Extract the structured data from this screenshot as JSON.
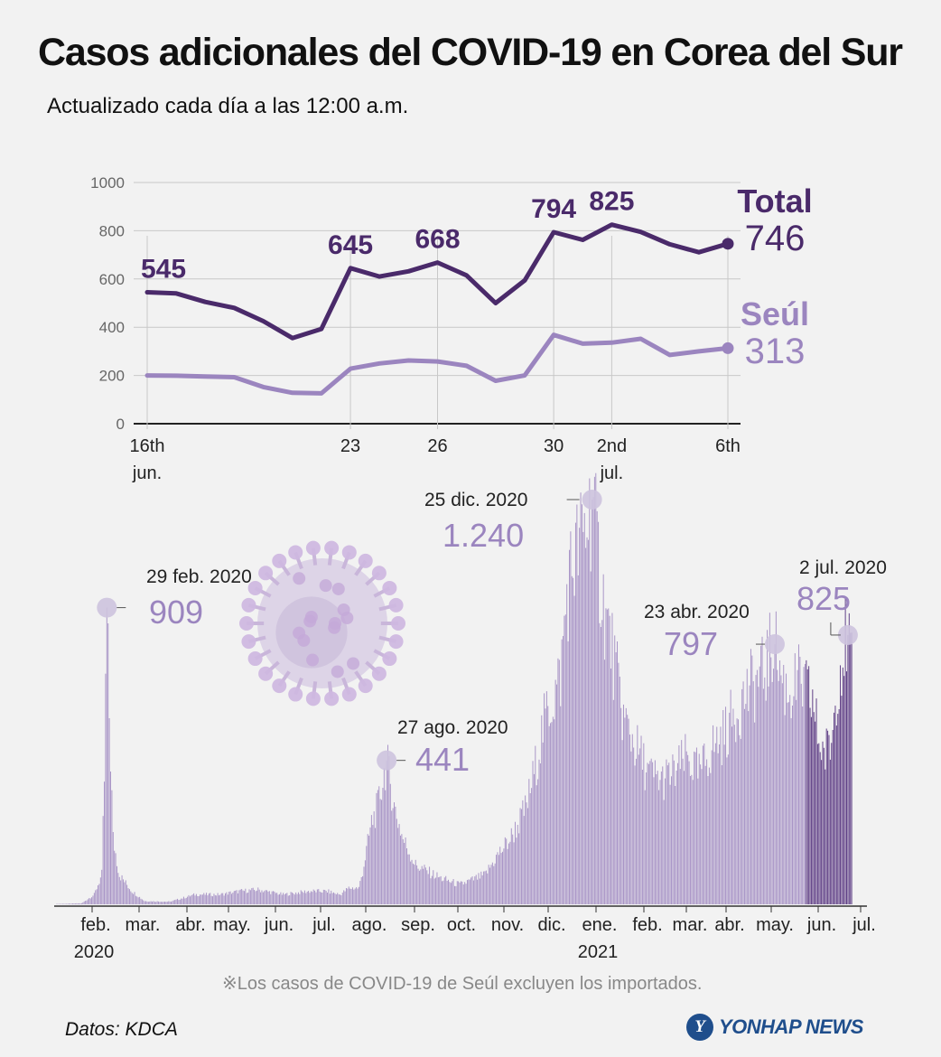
{
  "header": {
    "title": "Casos adicionales del COVID-19 en Corea del Sur",
    "subtitle": "Actualizado cada día a las 12:00 a.m."
  },
  "colors": {
    "total": "#4a2a6a",
    "seoul": "#9b85bf",
    "bars": "#a894c6",
    "bars_recent": "#5e3d85",
    "grid": "#c8c8c8",
    "halo": "#cdc3de"
  },
  "chart_data": [
    {
      "type": "line",
      "title": "",
      "ylim": [
        0,
        1000
      ],
      "yticks": [
        "0",
        "200",
        "400",
        "600",
        "800",
        "1000"
      ],
      "x_labels": [
        {
          "index": 0,
          "line1": "16th",
          "line2": "jun."
        },
        {
          "index": 7,
          "line1": "23",
          "line2": ""
        },
        {
          "index": 10,
          "line1": "26",
          "line2": ""
        },
        {
          "index": 14,
          "line1": "30",
          "line2": ""
        },
        {
          "index": 16,
          "line1": "2nd",
          "line2": "jul."
        },
        {
          "index": 20,
          "line1": "6th",
          "line2": ""
        }
      ],
      "series": [
        {
          "name": "Total",
          "final_label": "746",
          "values": [
            545,
            540,
            505,
            480,
            425,
            355,
            393,
            645,
            610,
            632,
            668,
            615,
            500,
            594,
            794,
            762,
            825,
            795,
            744,
            711,
            746
          ],
          "labels": [
            {
              "index": 0,
              "text": "545"
            },
            {
              "index": 7,
              "text": "645"
            },
            {
              "index": 10,
              "text": "668"
            },
            {
              "index": 14,
              "text": "794"
            },
            {
              "index": 16,
              "text": "825"
            }
          ]
        },
        {
          "name": "Seúl",
          "final_label": "313",
          "values": [
            200,
            199,
            196,
            193,
            152,
            128,
            126,
            228,
            250,
            262,
            258,
            240,
            178,
            200,
            368,
            332,
            336,
            352,
            285,
            300,
            313
          ],
          "labels": []
        }
      ]
    },
    {
      "type": "bar",
      "title": "",
      "month_labels": [
        "feb.",
        "mar.",
        "abr.",
        "may.",
        "jun.",
        "jul.",
        "ago.",
        "sep.",
        "oct.",
        "nov.",
        "dic.",
        "ene.",
        "feb.",
        "mar.",
        "abr.",
        "may.",
        "jun.",
        "jul."
      ],
      "year_labels": [
        {
          "text": "2020",
          "month_index": 0
        },
        {
          "text": "2021",
          "month_index": 11
        }
      ],
      "ylim": [
        0,
        1240
      ],
      "anchors": [
        [
          0,
          1
        ],
        [
          20,
          3
        ],
        [
          30,
          30
        ],
        [
          36,
          90
        ],
        [
          38,
          380
        ],
        [
          40,
          909
        ],
        [
          42,
          580
        ],
        [
          45,
          200
        ],
        [
          50,
          90
        ],
        [
          60,
          40
        ],
        [
          70,
          10
        ],
        [
          90,
          8
        ],
        [
          110,
          30
        ],
        [
          130,
          30
        ],
        [
          145,
          40
        ],
        [
          160,
          45
        ],
        [
          180,
          30
        ],
        [
          200,
          40
        ],
        [
          215,
          40
        ],
        [
          225,
          30
        ],
        [
          232,
          50
        ],
        [
          240,
          50
        ],
        [
          243,
          100
        ],
        [
          250,
          250
        ],
        [
          255,
          300
        ],
        [
          262,
          441
        ],
        [
          268,
          300
        ],
        [
          275,
          200
        ],
        [
          285,
          120
        ],
        [
          295,
          100
        ],
        [
          305,
          80
        ],
        [
          320,
          60
        ],
        [
          340,
          90
        ],
        [
          350,
          150
        ],
        [
          360,
          200
        ],
        [
          367,
          250
        ],
        [
          373,
          300
        ],
        [
          380,
          420
        ],
        [
          385,
          520
        ],
        [
          390,
          600
        ],
        [
          395,
          640
        ],
        [
          400,
          700
        ],
        [
          405,
          950
        ],
        [
          410,
          1050
        ],
        [
          420,
          1150
        ],
        [
          425,
          1240
        ],
        [
          430,
          1050
        ],
        [
          435,
          900
        ],
        [
          440,
          800
        ],
        [
          450,
          570
        ],
        [
          460,
          480
        ],
        [
          470,
          400
        ],
        [
          480,
          380
        ],
        [
          490,
          400
        ],
        [
          500,
          450
        ],
        [
          510,
          400
        ],
        [
          520,
          480
        ],
        [
          530,
          520
        ],
        [
          540,
          600
        ],
        [
          550,
          660
        ],
        [
          560,
          700
        ],
        [
          565,
          750
        ],
        [
          570,
          797
        ],
        [
          575,
          700
        ],
        [
          580,
          650
        ],
        [
          590,
          680
        ],
        [
          600,
          620
        ],
        [
          605,
          500
        ],
        [
          610,
          460
        ],
        [
          615,
          500
        ],
        [
          620,
          700
        ],
        [
          625,
          794
        ],
        [
          628,
          825
        ],
        [
          631,
          746
        ]
      ],
      "annotations": [
        {
          "date": "29 feb. 2020",
          "value": "909",
          "bar_index": 40
        },
        {
          "date": "27 ago. 2020",
          "value": "441",
          "bar_index": 262
        },
        {
          "date": "25 dic. 2020",
          "value": "1.240",
          "bar_index": 425
        },
        {
          "date": "23 abr. 2020",
          "value": "797",
          "bar_index": 570
        },
        {
          "date": "2 jul. 2020",
          "value": "825",
          "bar_index": 628
        }
      ]
    }
  ],
  "footnote": "※Los casos de COVID-19 de Seúl excluyen los importados.",
  "source": "Datos: KDCA",
  "logo": {
    "mark": "Y",
    "text": "YONHAP NEWS"
  }
}
